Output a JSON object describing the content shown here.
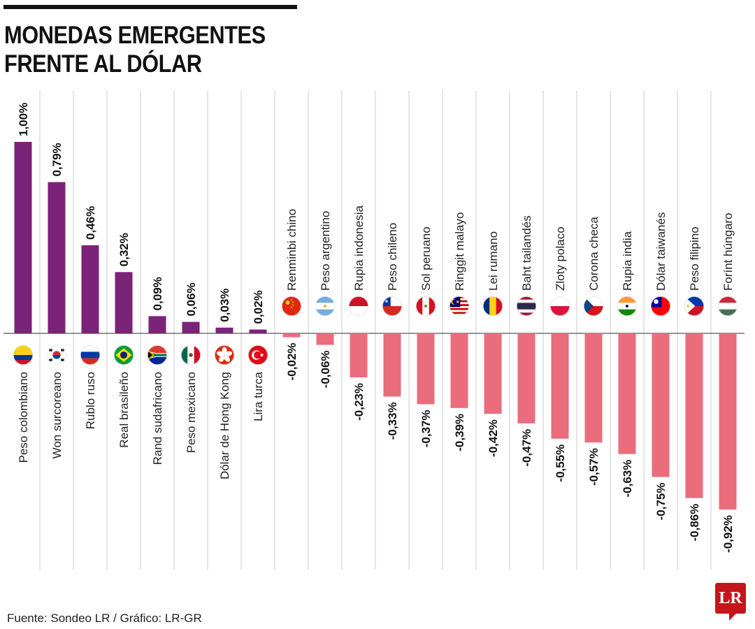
{
  "title_lines": [
    "MONEDAS EMERGENTES",
    "FRENTE AL DÓLAR"
  ],
  "source": "Fuente: Sondeo LR / Gráfico: LR-GR",
  "logo": "LR",
  "chart_data": {
    "type": "bar",
    "title": "MONEDAS EMERGENTES FRENTE AL DÓLAR",
    "categories": [
      "Peso colombiano",
      "Won surcoreano",
      "Rublo ruso",
      "Real brasileño",
      "Rand sudafricano",
      "Peso mexicano",
      "Dólar de Hong Kong",
      "Lira turca",
      "Renminbi chino",
      "Peso argentino",
      "Rupia indonesia",
      "Peso chileno",
      "Sol peruano",
      "Ringgit malayo",
      "Lei rumano",
      "Baht tailandés",
      "Zloty polaco",
      "Corona checa",
      "Rupia india",
      "Dólar taiwanés",
      "Peso filipino",
      "Forínt húngaro"
    ],
    "values": [
      1.0,
      0.79,
      0.46,
      0.32,
      0.09,
      0.06,
      0.03,
      0.02,
      -0.02,
      -0.06,
      -0.23,
      -0.33,
      -0.37,
      -0.39,
      -0.42,
      -0.47,
      -0.55,
      -0.57,
      -0.63,
      -0.75,
      -0.86,
      -0.92
    ],
    "labels": [
      "1,00%",
      "0,79%",
      "0,46%",
      "0,32%",
      "0,09%",
      "0,06%",
      "0,03%",
      "0,02%",
      "-0,02%",
      "-0,06%",
      "-0,23%",
      "-0,33%",
      "-0,37%",
      "-0,39%",
      "-0,42%",
      "-0,47%",
      "-0,55%",
      "-0,57%",
      "-0,63%",
      "-0,75%",
      "-0,86%",
      "-0,92%"
    ],
    "flags": [
      "colombia",
      "south-korea",
      "russia",
      "brazil",
      "south-africa",
      "mexico",
      "hong-kong",
      "turkey",
      "china",
      "argentina",
      "indonesia",
      "chile",
      "peru",
      "malaysia",
      "romania",
      "thailand",
      "poland",
      "czech-republic",
      "india",
      "taiwan",
      "philippines",
      "hungary"
    ],
    "unit": "%",
    "colors": {
      "positive": "#7b2378",
      "negative": "#ea6d7e",
      "grid": "#cccccc",
      "axis": "#555555"
    },
    "grid": "vertical separators",
    "legend": "none"
  }
}
